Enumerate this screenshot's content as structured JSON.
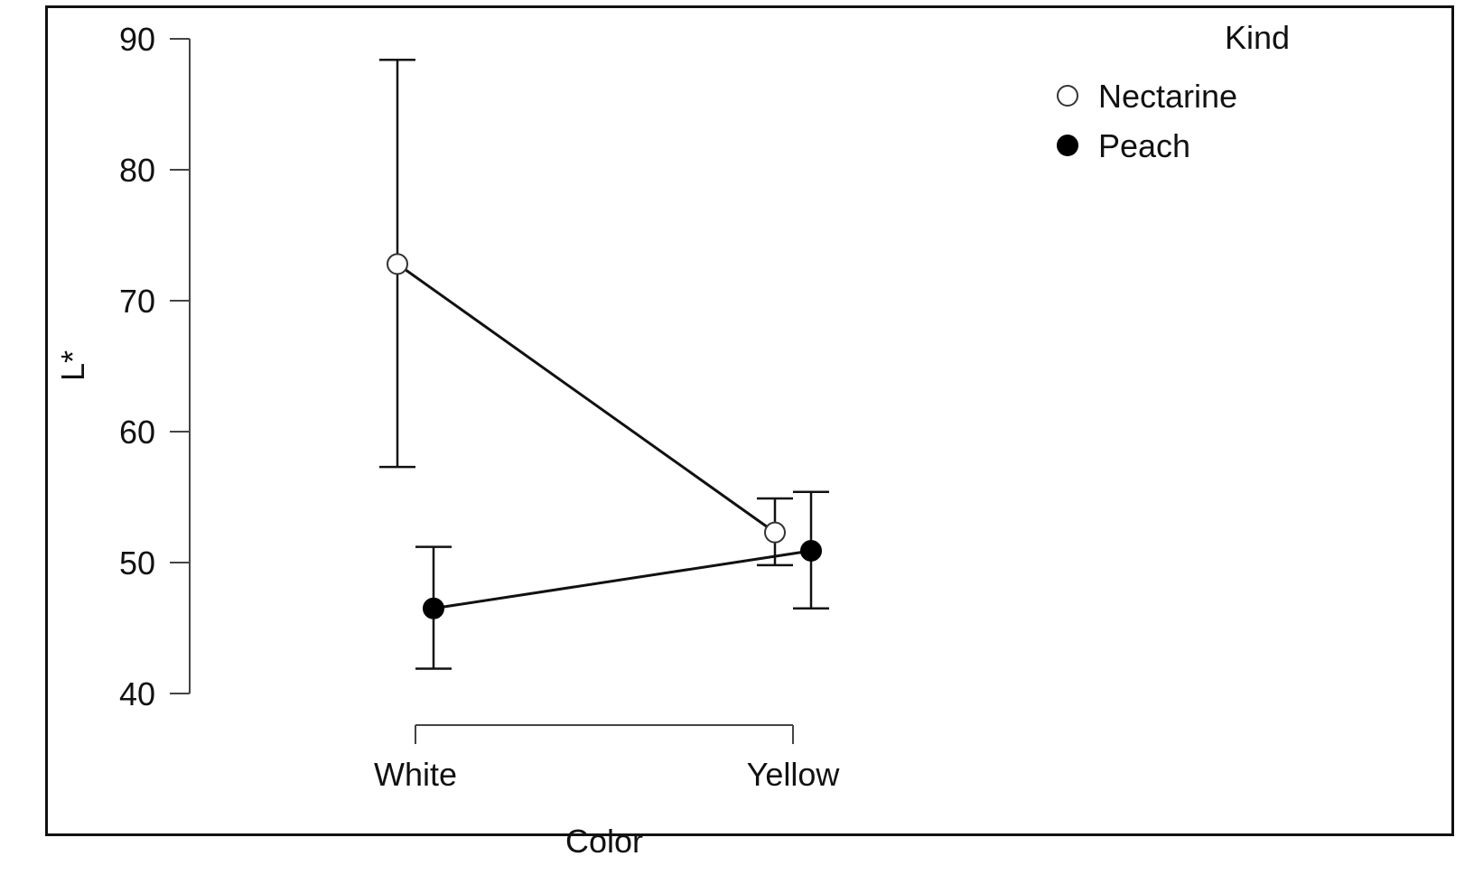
{
  "chart_data": {
    "type": "line",
    "title": "",
    "xlabel": "Color",
    "ylabel": "L*",
    "categories": [
      "White",
      "Yellow"
    ],
    "ylim": [
      40,
      90
    ],
    "yticks": [
      40,
      50,
      60,
      70,
      80,
      90
    ],
    "grid": false,
    "legend": {
      "title": "Kind",
      "placement": "top-right"
    },
    "series": [
      {
        "name": "Nectarine",
        "marker": "open-circle",
        "values": [
          72.8,
          52.3
        ],
        "error_low": [
          57.3,
          49.8
        ],
        "error_high": [
          88.4,
          54.9
        ]
      },
      {
        "name": "Peach",
        "marker": "filled-circle",
        "values": [
          46.5,
          50.9
        ],
        "error_low": [
          41.9,
          46.5
        ],
        "error_high": [
          51.2,
          55.4
        ]
      }
    ],
    "colors": {
      "line": "#111111",
      "axis": "#444444",
      "open_fill": "#ffffff",
      "filled": "#000000"
    }
  }
}
